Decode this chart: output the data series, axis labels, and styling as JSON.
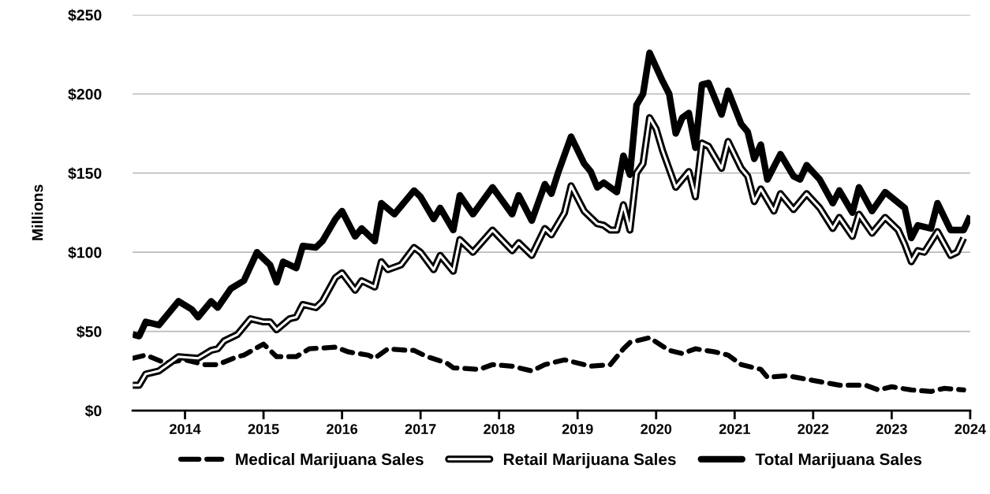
{
  "chart_data": {
    "type": "line",
    "ylabel": "Millions",
    "xlim": [
      "2013-05",
      "2024-01"
    ],
    "xticks": [
      "2014",
      "2015",
      "2016",
      "2017",
      "2018",
      "2019",
      "2020",
      "2021",
      "2022",
      "2023",
      "2024"
    ],
    "ylim": [
      0,
      250
    ],
    "yticks": [
      {
        "value": 0,
        "label": "$0"
      },
      {
        "value": 50,
        "label": "$50"
      },
      {
        "value": 100,
        "label": "$100"
      },
      {
        "value": 150,
        "label": "$150"
      },
      {
        "value": 200,
        "label": "$200"
      },
      {
        "value": 250,
        "label": "$250"
      }
    ],
    "grid": "y",
    "legend": "bottom",
    "marker": "none",
    "series": [
      {
        "name": "Medical Marijuana Sales",
        "color": "#000000",
        "line_style": "dashed",
        "x": [
          "2013-05",
          "2013-07",
          "2013-10",
          "2014-01",
          "2014-04",
          "2014-06",
          "2014-09",
          "2014-10",
          "2015-01",
          "2015-03",
          "2015-06",
          "2015-08",
          "2015-12",
          "2016-02",
          "2016-05",
          "2016-06",
          "2016-08",
          "2016-11",
          "2016-12",
          "2017-02",
          "2017-05",
          "2017-06",
          "2017-10",
          "2017-12",
          "2018-03",
          "2018-06",
          "2018-08",
          "2018-11",
          "2018-12",
          "2019-03",
          "2019-06",
          "2019-08",
          "2019-09",
          "2019-12",
          "2020-03",
          "2020-05",
          "2020-07",
          "2020-10",
          "2020-12",
          "2021-02",
          "2021-05",
          "2021-06",
          "2021-09",
          "2022-01",
          "2022-05",
          "2022-09",
          "2022-11",
          "2023-01",
          "2023-04",
          "2023-07",
          "2023-09",
          "2023-12"
        ],
        "values": [
          33,
          35,
          30,
          32,
          29,
          29,
          34,
          35,
          42,
          34,
          34,
          39,
          40,
          37,
          35,
          33,
          39,
          38,
          38,
          34,
          30,
          27,
          26,
          29,
          28,
          25,
          29,
          32,
          31,
          28,
          29,
          39,
          43,
          46,
          38,
          36,
          39,
          37,
          35,
          29,
          26,
          21,
          22,
          19,
          16,
          16,
          13,
          15,
          13,
          12,
          14,
          13
        ]
      },
      {
        "name": "Retail Marijuana Sales",
        "color": "#000000",
        "line_style": "solid",
        "x": [
          "2013-05",
          "2013-06",
          "2013-07",
          "2013-09",
          "2013-10",
          "2013-12",
          "2014-03",
          "2014-05",
          "2014-06",
          "2014-07",
          "2014-09",
          "2014-11",
          "2015-01",
          "2015-02",
          "2015-03",
          "2015-05",
          "2015-06",
          "2015-07",
          "2015-09",
          "2015-10",
          "2015-12",
          "2016-01",
          "2016-03",
          "2016-04",
          "2016-06",
          "2016-07",
          "2016-08",
          "2016-10",
          "2016-12",
          "2017-01",
          "2017-03",
          "2017-04",
          "2017-06",
          "2017-07",
          "2017-09",
          "2017-12",
          "2018-03",
          "2018-04",
          "2018-06",
          "2018-08",
          "2018-09",
          "2018-11",
          "2018-12",
          "2019-02",
          "2019-04",
          "2019-05",
          "2019-06",
          "2019-07",
          "2019-08",
          "2019-09",
          "2019-10",
          "2019-11",
          "2019-12",
          "2020-01",
          "2020-02",
          "2020-04",
          "2020-06",
          "2020-07",
          "2020-08",
          "2020-09",
          "2020-11",
          "2020-12",
          "2021-02",
          "2021-03",
          "2021-04",
          "2021-05",
          "2021-07",
          "2021-08",
          "2021-10",
          "2021-12",
          "2022-02",
          "2022-04",
          "2022-05",
          "2022-07",
          "2022-08",
          "2022-10",
          "2022-12",
          "2023-02",
          "2023-03",
          "2023-04",
          "2023-05",
          "2023-06",
          "2023-08",
          "2023-10",
          "2023-11",
          "2023-12"
        ],
        "values": [
          16,
          16,
          23,
          25,
          28,
          34,
          33,
          38,
          39,
          44,
          48,
          58,
          56,
          56,
          51,
          58,
          59,
          67,
          65,
          69,
          84,
          87,
          76,
          82,
          78,
          94,
          89,
          92,
          103,
          100,
          89,
          98,
          88,
          108,
          100,
          114,
          101,
          106,
          98,
          115,
          111,
          125,
          142,
          126,
          118,
          117,
          114,
          114,
          130,
          114,
          150,
          156,
          185,
          178,
          164,
          141,
          151,
          135,
          169,
          167,
          153,
          170,
          153,
          148,
          132,
          140,
          126,
          137,
          127,
          137,
          128,
          115,
          122,
          110,
          124,
          112,
          122,
          114,
          105,
          94,
          101,
          100,
          113,
          98,
          100,
          109
        ]
      },
      {
        "name": "Total Marijuana Sales",
        "color": "#000000",
        "line_style": "solid",
        "x": [
          "2013-05",
          "2013-06",
          "2013-07",
          "2013-09",
          "2013-12",
          "2014-02",
          "2014-03",
          "2014-05",
          "2014-06",
          "2014-08",
          "2014-10",
          "2014-12",
          "2015-02",
          "2015-03",
          "2015-04",
          "2015-06",
          "2015-07",
          "2015-09",
          "2015-10",
          "2015-12",
          "2016-01",
          "2016-03",
          "2016-04",
          "2016-06",
          "2016-07",
          "2016-09",
          "2016-12",
          "2017-01",
          "2017-03",
          "2017-04",
          "2017-06",
          "2017-07",
          "2017-09",
          "2017-12",
          "2018-03",
          "2018-04",
          "2018-06",
          "2018-08",
          "2018-09",
          "2018-10",
          "2018-12",
          "2019-02",
          "2019-03",
          "2019-04",
          "2019-05",
          "2019-07",
          "2019-08",
          "2019-09",
          "2019-10",
          "2019-11",
          "2019-12",
          "2020-02",
          "2020-03",
          "2020-04",
          "2020-05",
          "2020-06",
          "2020-07",
          "2020-08",
          "2020-09",
          "2020-11",
          "2020-12",
          "2021-02",
          "2021-03",
          "2021-04",
          "2021-05",
          "2021-06",
          "2021-08",
          "2021-10",
          "2021-11",
          "2021-12",
          "2022-02",
          "2022-04",
          "2022-05",
          "2022-07",
          "2022-08",
          "2022-10",
          "2022-12",
          "2023-03",
          "2023-04",
          "2023-05",
          "2023-07",
          "2023-08",
          "2023-10",
          "2023-12",
          "2024-01"
        ],
        "values": [
          48,
          47,
          56,
          54,
          69,
          64,
          59,
          69,
          65,
          77,
          82,
          100,
          92,
          81,
          94,
          90,
          104,
          103,
          107,
          121,
          126,
          110,
          115,
          107,
          131,
          124,
          139,
          135,
          121,
          128,
          114,
          136,
          124,
          141,
          124,
          136,
          120,
          143,
          137,
          150,
          173,
          156,
          151,
          141,
          144,
          138,
          161,
          149,
          193,
          200,
          226,
          208,
          200,
          175,
          185,
          188,
          166,
          206,
          207,
          187,
          202,
          181,
          176,
          159,
          168,
          146,
          162,
          148,
          146,
          155,
          146,
          131,
          139,
          125,
          141,
          126,
          138,
          128,
          109,
          117,
          115,
          131,
          114,
          114,
          123
        ]
      }
    ]
  }
}
